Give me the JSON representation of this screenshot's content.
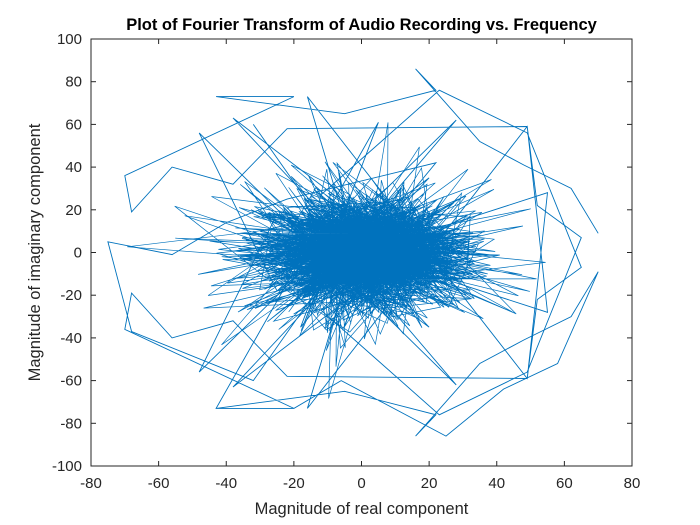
{
  "chart_data": {
    "type": "line",
    "title": "Plot of Fourier Transform of Audio Recording vs. Frequency",
    "xlabel": "Magnitude of real component",
    "ylabel": "Magnitude of imaginary component",
    "xlim": [
      -80,
      80
    ],
    "ylim": [
      -100,
      100
    ],
    "xticks": [
      -80,
      -60,
      -40,
      -20,
      0,
      20,
      40,
      60,
      80
    ],
    "yticks": [
      -100,
      -80,
      -60,
      -40,
      -20,
      0,
      20,
      40,
      60,
      80,
      100
    ],
    "xtick_labels": [
      "-80",
      "-60",
      "-40",
      "-20",
      "0",
      "20",
      "40",
      "60",
      "80"
    ],
    "ytick_labels": [
      "-100",
      "-80",
      "-60",
      "-40",
      "-20",
      "0",
      "20",
      "40",
      "60",
      "80",
      "100"
    ],
    "grid": false,
    "line_color": "#0072BD",
    "series": [
      {
        "x": [
          70,
          62,
          48,
          35,
          16,
          22,
          -5,
          -43,
          -20,
          -70,
          -68,
          -56,
          -38,
          -22,
          49,
          52,
          65,
          49,
          23,
          -12,
          0,
          28,
          -48,
          -25,
          20,
          -38,
          10,
          55,
          49,
          -16,
          0,
          -32,
          -68,
          -75,
          -56,
          -40,
          -22,
          22,
          -18,
          5,
          -43,
          -20,
          -6,
          25,
          42,
          58,
          70,
          62,
          48,
          35,
          16,
          22,
          -5,
          -43,
          -20,
          -70,
          -68,
          -56,
          -38,
          -22,
          49,
          52,
          65,
          49,
          23,
          -12,
          0,
          28,
          -48,
          -25,
          20,
          -38,
          10,
          55,
          49,
          -16,
          0,
          -32
        ],
        "y": [
          9,
          30,
          41,
          52,
          86,
          76,
          65,
          73,
          73,
          36,
          19,
          40,
          32,
          58,
          59,
          22,
          7,
          -56,
          -76,
          -27,
          -10,
          -62,
          56,
          -18,
          35,
          -63,
          -5,
          -28,
          59,
          -73,
          12,
          -60,
          -37,
          5,
          -1,
          14,
          25,
          42,
          -35,
          61,
          -73,
          -73,
          -60,
          -86,
          -64,
          -52,
          -9,
          -30,
          -41,
          -52,
          -86,
          -76,
          -65,
          -73,
          -73,
          -36,
          -19,
          -40,
          -32,
          -58,
          -59,
          -22,
          -7,
          56,
          76,
          27,
          10,
          62,
          -56,
          18,
          -35,
          63,
          5,
          28,
          -59,
          73,
          -12,
          60
        ]
      }
    ]
  }
}
